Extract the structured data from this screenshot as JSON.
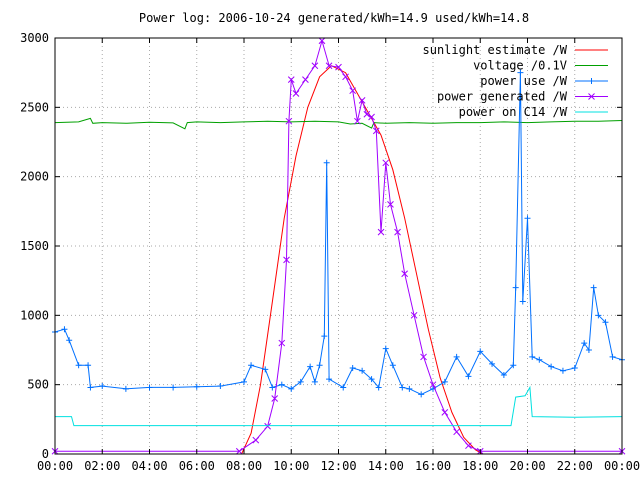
{
  "chart_data": {
    "type": "line",
    "title": "Power log: 2006-10-24 generated/kWh=14.9 used/kWh=14.8",
    "xlabel": "",
    "ylabel": "",
    "xlim": [
      0,
      24
    ],
    "ylim": [
      0,
      3000
    ],
    "x_ticks": [
      "00:00",
      "02:00",
      "04:00",
      "06:00",
      "08:00",
      "10:00",
      "12:00",
      "14:00",
      "16:00",
      "18:00",
      "20:00",
      "22:00",
      "00:00"
    ],
    "y_ticks": [
      0,
      500,
      1000,
      1500,
      2000,
      2500,
      3000
    ],
    "grid": true,
    "legend_position": "top-right",
    "series": [
      {
        "name": "sunlight estimate /W",
        "color": "#ff0000",
        "marker": "none",
        "points": [
          [
            0,
            0
          ],
          [
            7.9,
            0
          ],
          [
            8.3,
            150
          ],
          [
            8.7,
            500
          ],
          [
            9.2,
            1100
          ],
          [
            9.7,
            1700
          ],
          [
            10.2,
            2150
          ],
          [
            10.7,
            2500
          ],
          [
            11.2,
            2720
          ],
          [
            11.7,
            2800
          ],
          [
            12.3,
            2750
          ],
          [
            12.8,
            2600
          ],
          [
            13.3,
            2450
          ],
          [
            13.8,
            2300
          ],
          [
            14.3,
            2050
          ],
          [
            14.8,
            1700
          ],
          [
            15.3,
            1300
          ],
          [
            15.8,
            900
          ],
          [
            16.3,
            550
          ],
          [
            16.8,
            300
          ],
          [
            17.3,
            120
          ],
          [
            17.8,
            30
          ],
          [
            18.1,
            0
          ],
          [
            24,
            0
          ]
        ]
      },
      {
        "name": "voltage /0.1V",
        "color": "#00a000",
        "marker": "none",
        "points": [
          [
            0,
            2390
          ],
          [
            1,
            2395
          ],
          [
            1.5,
            2420
          ],
          [
            1.6,
            2385
          ],
          [
            2,
            2390
          ],
          [
            3,
            2385
          ],
          [
            4,
            2392
          ],
          [
            5,
            2388
          ],
          [
            5.5,
            2345
          ],
          [
            5.6,
            2390
          ],
          [
            6,
            2395
          ],
          [
            7,
            2390
          ],
          [
            8,
            2395
          ],
          [
            9,
            2400
          ],
          [
            10,
            2395
          ],
          [
            11,
            2400
          ],
          [
            12,
            2395
          ],
          [
            12.5,
            2380
          ],
          [
            13,
            2385
          ],
          [
            13.4,
            2350
          ],
          [
            13.5,
            2390
          ],
          [
            14,
            2385
          ],
          [
            15,
            2390
          ],
          [
            16,
            2385
          ],
          [
            17,
            2390
          ],
          [
            18,
            2390
          ],
          [
            19,
            2395
          ],
          [
            20,
            2390
          ],
          [
            21,
            2395
          ],
          [
            22,
            2400
          ],
          [
            23,
            2400
          ],
          [
            24,
            2405
          ]
        ]
      },
      {
        "name": "power use /W",
        "color": "#0070ff",
        "marker": "plus",
        "points": [
          [
            0,
            880
          ],
          [
            0.4,
            900
          ],
          [
            0.6,
            820
          ],
          [
            1,
            640
          ],
          [
            1.4,
            640
          ],
          [
            1.5,
            480
          ],
          [
            2,
            490
          ],
          [
            3,
            470
          ],
          [
            4,
            480
          ],
          [
            5,
            480
          ],
          [
            6,
            485
          ],
          [
            7,
            490
          ],
          [
            8,
            520
          ],
          [
            8.3,
            640
          ],
          [
            8.9,
            610
          ],
          [
            9.2,
            480
          ],
          [
            9.6,
            500
          ],
          [
            10,
            470
          ],
          [
            10.4,
            520
          ],
          [
            10.8,
            630
          ],
          [
            11,
            520
          ],
          [
            11.2,
            640
          ],
          [
            11.4,
            850
          ],
          [
            11.5,
            2100
          ],
          [
            11.6,
            540
          ],
          [
            12.2,
            480
          ],
          [
            12.6,
            620
          ],
          [
            13,
            600
          ],
          [
            13.4,
            540
          ],
          [
            13.7,
            480
          ],
          [
            14,
            760
          ],
          [
            14.3,
            640
          ],
          [
            14.7,
            480
          ],
          [
            15,
            470
          ],
          [
            15.5,
            430
          ],
          [
            16,
            470
          ],
          [
            16.5,
            520
          ],
          [
            17,
            700
          ],
          [
            17.5,
            560
          ],
          [
            18,
            740
          ],
          [
            18.5,
            650
          ],
          [
            19,
            570
          ],
          [
            19.4,
            640
          ],
          [
            19.5,
            1200
          ],
          [
            19.7,
            2750
          ],
          [
            19.8,
            1100
          ],
          [
            20,
            1700
          ],
          [
            20.2,
            700
          ],
          [
            20.5,
            680
          ],
          [
            21,
            630
          ],
          [
            21.5,
            600
          ],
          [
            22,
            620
          ],
          [
            22.4,
            800
          ],
          [
            22.6,
            750
          ],
          [
            22.8,
            1200
          ],
          [
            23,
            1000
          ],
          [
            23.3,
            950
          ],
          [
            23.6,
            700
          ],
          [
            24,
            680
          ]
        ]
      },
      {
        "name": "power generated /W",
        "color": "#a000ff",
        "marker": "x",
        "points": [
          [
            0,
            20
          ],
          [
            7.8,
            20
          ],
          [
            8.5,
            100
          ],
          [
            9,
            200
          ],
          [
            9.3,
            400
          ],
          [
            9.6,
            800
          ],
          [
            9.8,
            1400
          ],
          [
            9.9,
            2400
          ],
          [
            10,
            2700
          ],
          [
            10.2,
            2600
          ],
          [
            10.6,
            2700
          ],
          [
            11,
            2800
          ],
          [
            11.3,
            2980
          ],
          [
            11.6,
            2800
          ],
          [
            12,
            2790
          ],
          [
            12.3,
            2720
          ],
          [
            12.6,
            2620
          ],
          [
            12.8,
            2400
          ],
          [
            13,
            2550
          ],
          [
            13.2,
            2450
          ],
          [
            13.4,
            2430
          ],
          [
            13.6,
            2330
          ],
          [
            13.8,
            1600
          ],
          [
            14,
            2100
          ],
          [
            14.2,
            1800
          ],
          [
            14.5,
            1600
          ],
          [
            14.8,
            1300
          ],
          [
            15.2,
            1000
          ],
          [
            15.6,
            700
          ],
          [
            16,
            500
          ],
          [
            16.5,
            300
          ],
          [
            17,
            160
          ],
          [
            17.5,
            60
          ],
          [
            18,
            20
          ],
          [
            24,
            20
          ]
        ]
      },
      {
        "name": "power on C14 /W",
        "color": "#00e0e0",
        "marker": "none",
        "points": [
          [
            0,
            270
          ],
          [
            0.7,
            270
          ],
          [
            0.8,
            205
          ],
          [
            5,
            205
          ],
          [
            10,
            205
          ],
          [
            15,
            205
          ],
          [
            19.3,
            205
          ],
          [
            19.5,
            410
          ],
          [
            19.9,
            420
          ],
          [
            20.1,
            480
          ],
          [
            20.2,
            270
          ],
          [
            22,
            265
          ],
          [
            24,
            270
          ]
        ]
      }
    ]
  }
}
